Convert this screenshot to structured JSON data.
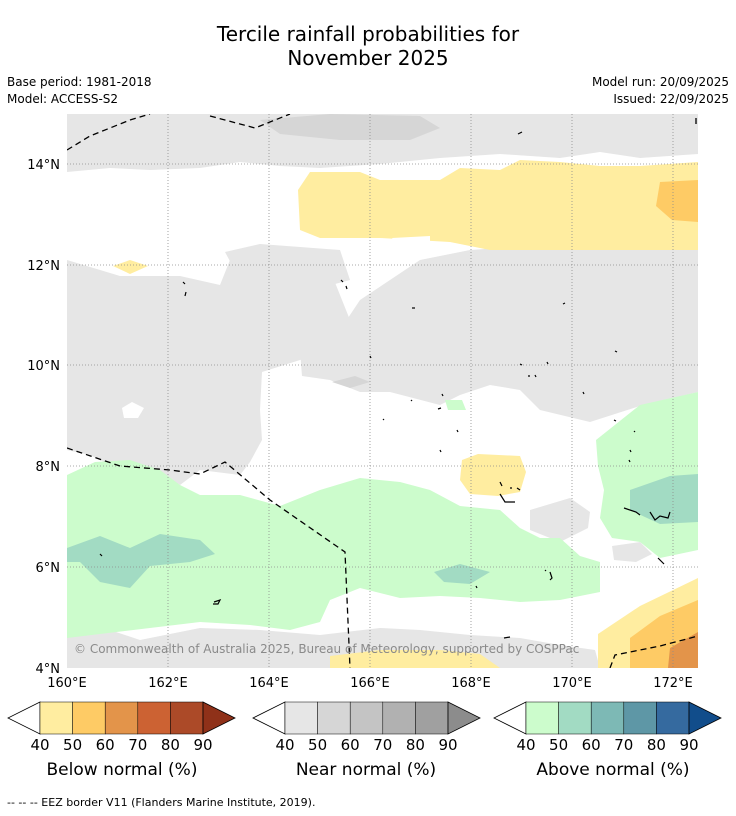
{
  "title": {
    "line1": "Tercile rainfall probabilities for",
    "line2": "November 2025"
  },
  "meta": {
    "base_period": "Base period: 1981-2018",
    "model": "Model: ACCESS-S2",
    "model_run": "Model run: 20/09/2025",
    "issued": "Issued: 22/09/2025"
  },
  "map": {
    "copyright": "© Commonwealth of Australia 2025, Bureau of Meteorology, supported by COSPPac",
    "lat_labels": [
      "4°N",
      "6°N",
      "8°N",
      "10°N",
      "12°N",
      "14°N"
    ],
    "lon_labels": [
      "160°E",
      "162°E",
      "164°E",
      "166°E",
      "168°E",
      "170°E",
      "172°E"
    ],
    "lat_range": [
      4,
      15
    ],
    "lon_range": [
      160,
      172.5
    ]
  },
  "legends": [
    {
      "title": "Below normal (%)",
      "ticks": [
        "40",
        "50",
        "60",
        "70",
        "80",
        "90"
      ],
      "colors": [
        "#ffffff",
        "#ffeda0",
        "#fecb65",
        "#e3944a",
        "#cc6233",
        "#ac4a28",
        "#8f3119"
      ]
    },
    {
      "title": "Near normal (%)",
      "ticks": [
        "40",
        "50",
        "60",
        "70",
        "80",
        "90"
      ],
      "colors": [
        "#ffffff",
        "#e6e6e6",
        "#d6d6d6",
        "#c4c4c4",
        "#b1b1b1",
        "#a0a0a0",
        "#8c8c8c"
      ]
    },
    {
      "title": "Above normal (%)",
      "ticks": [
        "40",
        "50",
        "60",
        "70",
        "80",
        "90"
      ],
      "colors": [
        "#ffffff",
        "#ccfccc",
        "#a2dbc3",
        "#7db9b5",
        "#5e97a6",
        "#356a9f",
        "#114d8b"
      ]
    }
  ],
  "footnote": "--  --  -- EEZ border V11 (Flanders Marine Institute, 2019)."
}
